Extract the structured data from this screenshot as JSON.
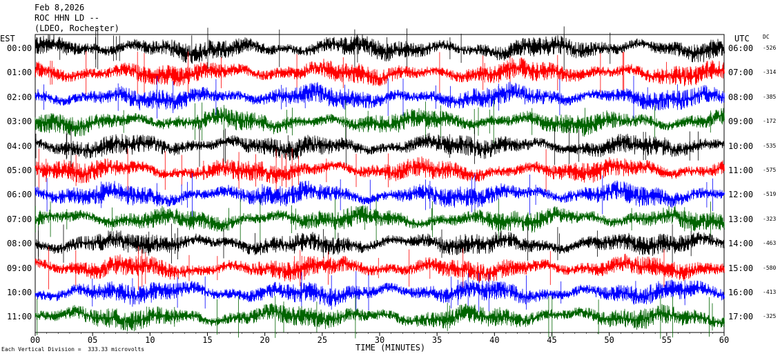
{
  "header": {
    "line1": "Feb 8,2026",
    "line2": "ROC HHN LD --",
    "line3": "(LDEO, Rochester)"
  },
  "chart_data": {
    "type": "line",
    "left_timezone": "EST",
    "right_timezone": "UTC",
    "dc_label": "DC",
    "rows": [
      {
        "est": "00:00",
        "utc": "06:00",
        "dc": "-526",
        "color": "#000000"
      },
      {
        "est": "01:00",
        "utc": "07:00",
        "dc": "-314",
        "color": "#ff0000"
      },
      {
        "est": "02:00",
        "utc": "08:00",
        "dc": "-385",
        "color": "#0000ff"
      },
      {
        "est": "03:00",
        "utc": "09:00",
        "dc": "-172",
        "color": "#006400"
      },
      {
        "est": "04:00",
        "utc": "10:00",
        "dc": "-535",
        "color": "#000000"
      },
      {
        "est": "05:00",
        "utc": "11:00",
        "dc": "-575",
        "color": "#ff0000"
      },
      {
        "est": "06:00",
        "utc": "12:00",
        "dc": "-519",
        "color": "#0000ff"
      },
      {
        "est": "07:00",
        "utc": "13:00",
        "dc": "-323",
        "color": "#006400"
      },
      {
        "est": "08:00",
        "utc": "14:00",
        "dc": "-463",
        "color": "#000000"
      },
      {
        "est": "09:00",
        "utc": "15:00",
        "dc": "-580",
        "color": "#ff0000"
      },
      {
        "est": "10:00",
        "utc": "16:00",
        "dc": "-413",
        "color": "#0000ff"
      },
      {
        "est": "11:00",
        "utc": "17:00",
        "dc": "-325",
        "color": "#006400"
      }
    ],
    "x_ticks": [
      "00",
      "05",
      "10",
      "15",
      "20",
      "25",
      "30",
      "35",
      "40",
      "45",
      "50",
      "55",
      "60"
    ],
    "xlabel": "TIME (MINUTES)",
    "xlim": [
      0,
      60
    ],
    "footnote": "Each Vertical Division =  333.33 microvolts"
  }
}
